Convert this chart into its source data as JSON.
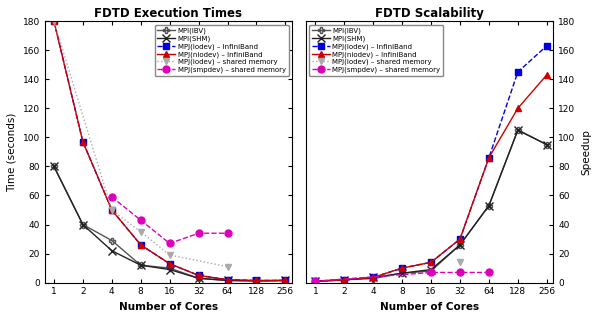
{
  "cores": [
    1,
    2,
    4,
    8,
    16,
    32,
    64,
    128,
    256
  ],
  "title_left": "FDTD Execution Times",
  "title_right": "FDTD Scalability",
  "xlabel": "Number of Cores",
  "ylabel_left": "Time (seconds)",
  "ylabel_right": "Speedup",
  "ylim_left": [
    0,
    180
  ],
  "ylim_right": [
    0,
    180
  ],
  "yticks_left": [
    0,
    20,
    40,
    60,
    80,
    100,
    120,
    140,
    160,
    180
  ],
  "yticks_right": [
    0,
    20,
    40,
    60,
    80,
    100,
    120,
    140,
    160,
    180
  ],
  "series": [
    {
      "label": "MPI(IBV)",
      "color": "#555555",
      "linestyle": "-",
      "marker": "P",
      "markersize": 5,
      "linewidth": 1.0,
      "dashed": false,
      "markerfacecolor": "none",
      "time": [
        80,
        40,
        29,
        12,
        10,
        3.0,
        1.5,
        1.2,
        1.5
      ],
      "speedup": [
        1,
        2,
        2.8,
        6.5,
        8,
        26,
        53,
        105,
        95
      ]
    },
    {
      "label": "MPI(SHM)",
      "color": "#222222",
      "linestyle": "-",
      "marker": "x",
      "markersize": 6,
      "linewidth": 1.0,
      "dashed": false,
      "markerfacecolor": "none",
      "time": [
        80,
        40,
        22,
        12,
        9,
        3.0,
        1.5,
        1.2,
        1.5
      ],
      "speedup": [
        1,
        2,
        3.6,
        6.5,
        9,
        26,
        53,
        105,
        95
      ]
    },
    {
      "label": "MPJ(iodev) – InfiniBand",
      "color": "#0000dd",
      "linestyle": "--",
      "marker": "s",
      "markersize": 4,
      "linewidth": 1.0,
      "dashed": true,
      "markerfacecolor": "#0000dd",
      "time": [
        180,
        97,
        50,
        26,
        13,
        5,
        2,
        1.5,
        1.5
      ],
      "speedup": [
        1,
        1.8,
        3.6,
        10,
        14,
        30,
        86,
        145,
        163
      ]
    },
    {
      "label": "MPJ(niodev) – InfiniBand",
      "color": "#cc0000",
      "linestyle": "-",
      "marker": "^",
      "markersize": 5,
      "linewidth": 1.0,
      "dashed": false,
      "markerfacecolor": "#cc0000",
      "time": [
        180,
        97,
        50,
        26,
        13,
        5,
        2,
        1.5,
        1.5
      ],
      "speedup": [
        1,
        1.8,
        3.6,
        10,
        14,
        30,
        86,
        120,
        143
      ]
    },
    {
      "label": "MPJ(iodev) – shared memory",
      "color": "#aaaaaa",
      "linestyle": ":",
      "marker": "v",
      "markersize": 5,
      "linewidth": 1.0,
      "dashed": true,
      "markerfacecolor": "#aaaaaa",
      "time": [
        180,
        null,
        50,
        35,
        19,
        null,
        11,
        null,
        null
      ],
      "speedup": [
        null,
        null,
        null,
        null,
        null,
        14,
        null,
        null,
        null
      ]
    },
    {
      "label": "MPJ(smpdev) – shared memory",
      "color": "#dd00bb",
      "linestyle": "--",
      "marker": "o",
      "markersize": 5,
      "linewidth": 1.0,
      "dashed": true,
      "markerfacecolor": "#dd00bb",
      "time": [
        null,
        null,
        59,
        43,
        27,
        34,
        34,
        null,
        null
      ],
      "speedup": [
        1,
        null,
        null,
        null,
        7,
        7,
        7,
        null,
        null
      ]
    }
  ]
}
